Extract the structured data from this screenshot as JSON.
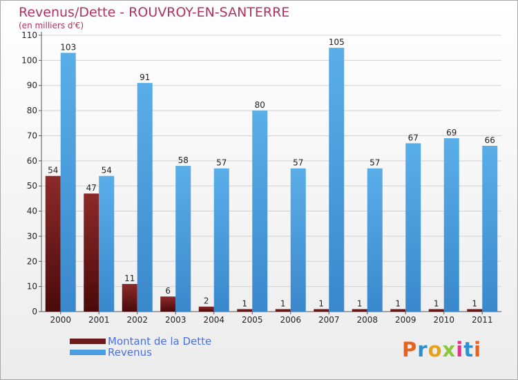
{
  "title": "Revenus/Dette - ROUVROY-EN-SANTERRE",
  "subtitle": "(en milliers d'€)",
  "legend": [
    {
      "label": "Montant de la Dette",
      "color": "#6e1a1a"
    },
    {
      "label": "Revenus",
      "color": "#4a9de0"
    }
  ],
  "logo": "Proxiti",
  "chart_data": {
    "type": "bar",
    "categories": [
      "2000",
      "2001",
      "2002",
      "2003",
      "2004",
      "2005",
      "2006",
      "2007",
      "2008",
      "2009",
      "2010",
      "2011"
    ],
    "series": [
      {
        "name": "Montant de la Dette",
        "color": "#7a1f1f",
        "values": [
          54,
          47,
          11,
          6,
          2,
          1,
          1,
          1,
          1,
          1,
          1,
          1
        ]
      },
      {
        "name": "Revenus",
        "color": "#4a9de0",
        "values": [
          103,
          54,
          91,
          58,
          57,
          80,
          57,
          105,
          57,
          67,
          69,
          66
        ]
      }
    ],
    "ylim": [
      0,
      110
    ],
    "yticks": [
      0,
      10,
      20,
      30,
      40,
      50,
      60,
      70,
      80,
      90,
      100,
      110
    ],
    "grid": true
  }
}
